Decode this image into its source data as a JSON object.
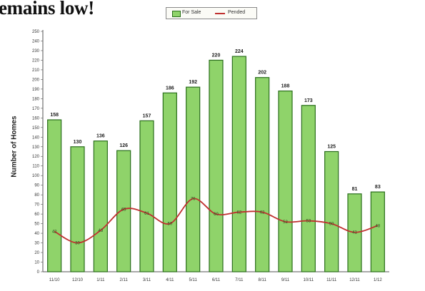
{
  "headline": "emains low!",
  "chart_data": {
    "type": "bar",
    "ylabel": "Number of Homes",
    "xlabel": "",
    "ylim": [
      0,
      250
    ],
    "ytick_step": 10,
    "categories": [
      "11/10",
      "12/10",
      "1/11",
      "2/11",
      "3/11",
      "4/11",
      "5/11",
      "6/11",
      "7/11",
      "8/11",
      "9/11",
      "10/11",
      "11/11",
      "12/11",
      "1/12"
    ],
    "series": [
      {
        "name": "For Sale",
        "type": "bar",
        "color": "#8fd36a",
        "values": [
          158,
          130,
          136,
          126,
          157,
          186,
          192,
          220,
          224,
          202,
          188,
          173,
          125,
          81,
          83
        ]
      },
      {
        "name": "Pended",
        "type": "line",
        "color": "#c03030",
        "values": [
          42,
          30,
          43,
          65,
          61,
          50,
          76,
          60,
          62,
          62,
          52,
          53,
          50,
          41,
          48
        ]
      }
    ],
    "grid": false,
    "legend": "top"
  }
}
